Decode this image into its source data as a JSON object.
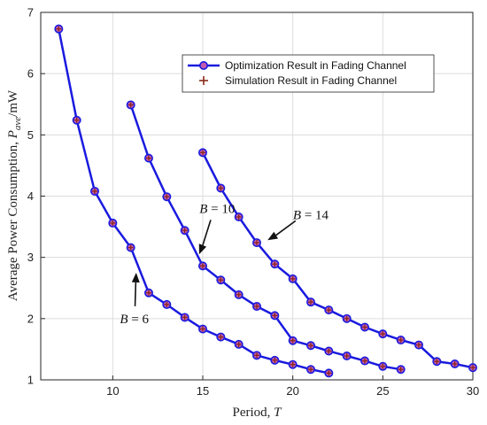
{
  "chart_data": {
    "type": "line",
    "xlabel": "Period, T",
    "ylabel": "Average Power Consumption, P_ave/mW",
    "xlim": [
      6,
      30
    ],
    "ylim": [
      1,
      7
    ],
    "xticks": [
      10,
      15,
      20,
      25,
      30
    ],
    "yticks": [
      1,
      2,
      3,
      4,
      5,
      6,
      7
    ],
    "grid": true,
    "legend_position": "top-right",
    "colors": {
      "line": "#1a1adf",
      "marker_face": "#c25bb0",
      "sim_marker": "#8b2a1a",
      "grid": "#dcdcdc"
    },
    "legend": [
      {
        "label": "Optimization Result in Fading Channel",
        "kind": "line-marker"
      },
      {
        "label": "Simulation Result in Fading Channel",
        "kind": "plus"
      }
    ],
    "series": [
      {
        "name": "B = 6",
        "x": [
          7,
          8,
          9,
          10,
          11,
          12,
          13,
          14,
          15,
          16,
          17,
          18,
          19,
          20,
          21,
          22
        ],
        "y": [
          6.73,
          5.24,
          4.08,
          3.56,
          3.16,
          2.42,
          2.23,
          2.02,
          1.83,
          1.7,
          1.58,
          1.4,
          1.32,
          1.25,
          1.17,
          1.11
        ]
      },
      {
        "name": "B = 10",
        "x": [
          11,
          12,
          13,
          14,
          15,
          16,
          17,
          18,
          19,
          20,
          21,
          22,
          23,
          24,
          25,
          26
        ],
        "y": [
          5.49,
          4.62,
          3.99,
          3.44,
          2.86,
          2.63,
          2.39,
          2.2,
          2.05,
          1.64,
          1.56,
          1.47,
          1.39,
          1.31,
          1.22,
          1.17
        ]
      },
      {
        "name": "B = 14",
        "x": [
          15,
          16,
          17,
          18,
          19,
          20,
          21,
          22,
          23,
          24,
          25,
          26,
          27,
          28,
          29,
          30
        ],
        "y": [
          4.71,
          4.13,
          3.66,
          3.24,
          2.89,
          2.65,
          2.27,
          2.14,
          2.0,
          1.86,
          1.75,
          1.65,
          1.57,
          1.3,
          1.26,
          1.2
        ]
      }
    ],
    "annotations": [
      {
        "label": "B = 6",
        "text_x": 11.2,
        "text_y": 2.0,
        "arrow_to": [
          11.3,
          2.75
        ]
      },
      {
        "label": "B = 10",
        "text_x": 15.8,
        "text_y": 3.8,
        "arrow_to": [
          14.8,
          3.05
        ]
      },
      {
        "label": "B = 14",
        "text_x": 21.0,
        "text_y": 3.7,
        "arrow_to": [
          18.6,
          3.28
        ]
      }
    ]
  }
}
